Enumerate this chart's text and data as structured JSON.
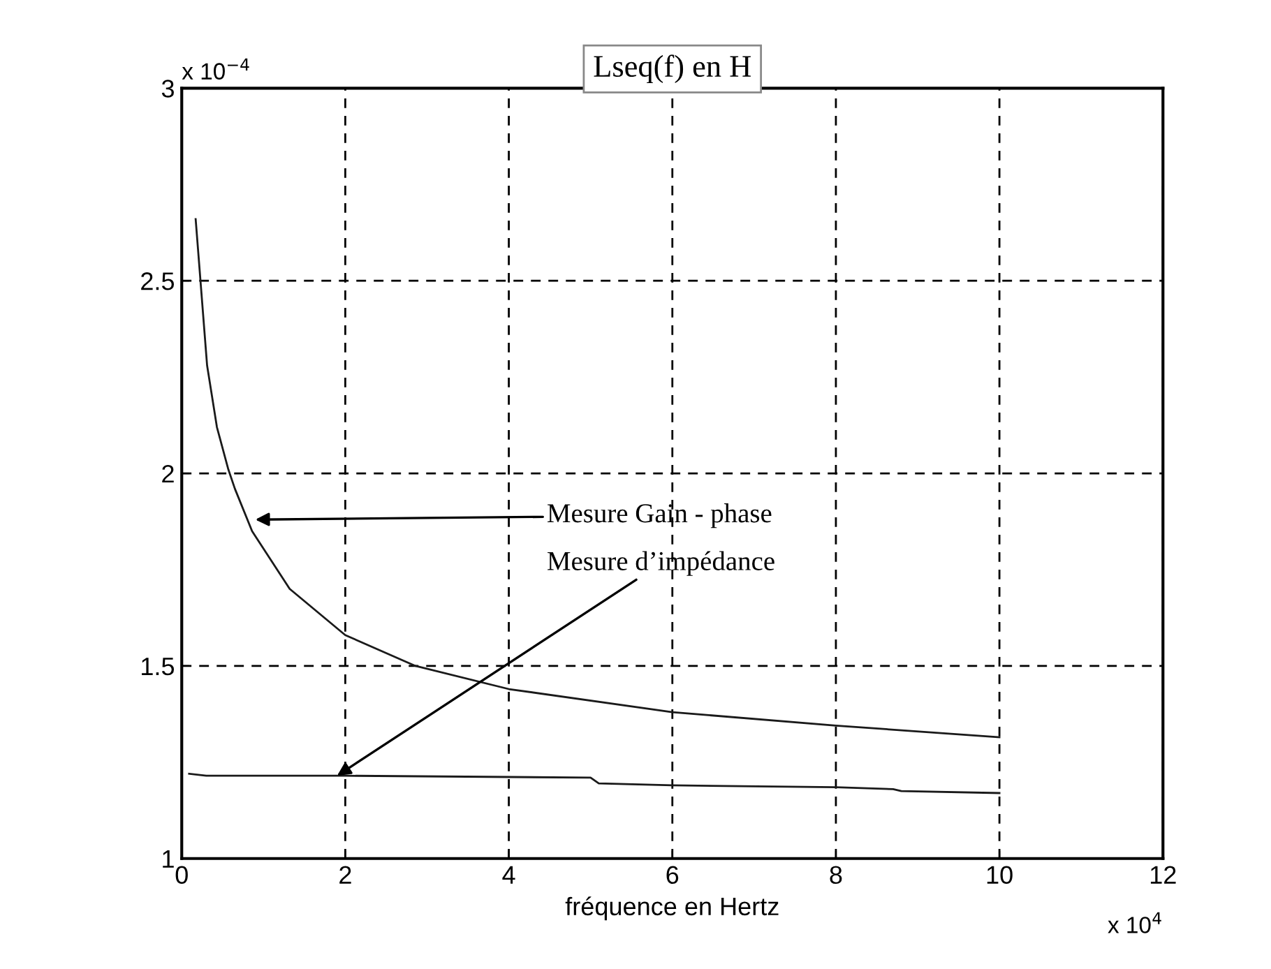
{
  "chart_data": {
    "type": "line",
    "title": "Lseq(f) en H",
    "xlabel": "fréquence en Hertz",
    "xlim": [
      0,
      12
    ],
    "xticks": [
      0,
      2,
      4,
      6,
      8,
      10,
      12
    ],
    "ylim": [
      1,
      3
    ],
    "yticks": [
      1,
      1.5,
      2,
      2.5,
      3
    ],
    "grid": true,
    "line_style": "solid",
    "series": [
      {
        "color": "#1a1a1a",
        "x": [
          0.17,
          0.31,
          0.43,
          0.57,
          0.65,
          0.86,
          1.32,
          2.0,
          2.86,
          4.0,
          6.0,
          8.0,
          10.0
        ],
        "values": [
          2.66,
          2.28,
          2.12,
          2.01,
          1.96,
          1.85,
          1.7,
          1.58,
          1.5,
          1.44,
          1.38,
          1.345,
          1.315
        ]
      },
      {
        "color": "#1a1a1a",
        "x": [
          0.09,
          0.3,
          2.0,
          5.0,
          5.1,
          6.0,
          8.0,
          8.7,
          8.8,
          10.0
        ],
        "values": [
          1.22,
          1.215,
          1.215,
          1.21,
          1.195,
          1.19,
          1.185,
          1.18,
          1.175,
          1.17
        ]
      }
    ],
    "annotations": [
      {
        "text": "Mesure Gain - phase",
        "x": 0.9,
        "y": 1.88
      },
      {
        "text": "Mesure d’impédance",
        "x": 1.9,
        "y": 1.215
      },
      "x 10$^{−4}$",
      "x 10$^{4}$"
    ]
  }
}
